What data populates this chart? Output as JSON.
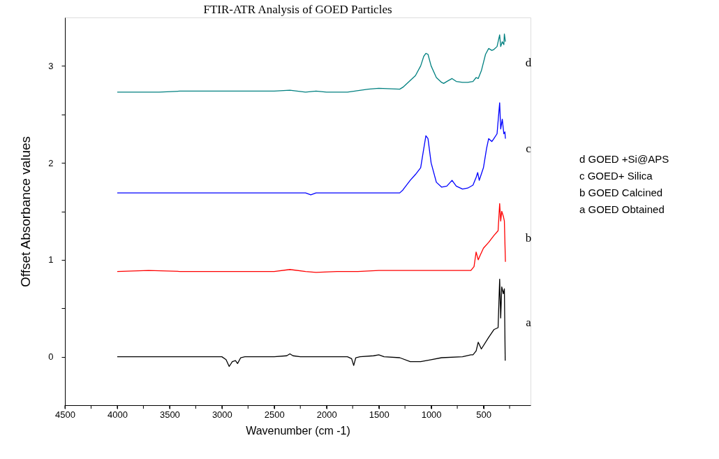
{
  "chart_data": {
    "type": "line",
    "title": "FTIR-ATR Analysis of GOED Particles",
    "xlabel": "Wavenumber (cm -1)",
    "ylabel": "Offset Absorbance values",
    "xlim": [
      4500,
      50
    ],
    "ylim": [
      -0.5,
      3.5
    ],
    "xticks": [
      4500,
      {
        "value": 4250,
        "label": null
      },
      4000,
      {
        "value": 3750,
        "label": null
      },
      3500,
      {
        "value": 3250,
        "label": null
      },
      3000,
      {
        "value": 2750,
        "label": null
      },
      2500,
      {
        "value": 2250,
        "label": null
      },
      2000,
      {
        "value": 1750,
        "label": null
      },
      1500,
      {
        "value": 1250,
        "label": null
      },
      1000,
      {
        "value": 750,
        "label": null
      },
      500,
      {
        "value": 250,
        "label": null
      }
    ],
    "yticks": [
      0,
      {
        "value": 0.5,
        "label": null
      },
      1,
      {
        "value": 1.5,
        "label": null
      },
      2,
      {
        "value": 2.5,
        "label": null
      },
      3
    ],
    "grid": false,
    "series": [
      {
        "name": "a",
        "color": "#000000",
        "x": [
          4000,
          3500,
          3000,
          2960,
          2930,
          2900,
          2870,
          2850,
          2820,
          2780,
          2500,
          2380,
          2350,
          2320,
          2250,
          2000,
          1800,
          1760,
          1740,
          1720,
          1680,
          1550,
          1500,
          1450,
          1300,
          1200,
          1100,
          1000,
          900,
          700,
          620,
          600,
          570,
          550,
          520,
          450,
          400,
          360,
          345,
          335,
          325,
          310,
          300,
          292
        ],
        "values": [
          0,
          0,
          0,
          -0.03,
          -0.1,
          -0.05,
          -0.04,
          -0.07,
          -0.01,
          0,
          0,
          0.01,
          0.03,
          0.01,
          0,
          0,
          0,
          -0.02,
          -0.09,
          -0.01,
          0,
          0.01,
          0.02,
          0,
          -0.01,
          -0.05,
          -0.05,
          -0.03,
          -0.01,
          0,
          0.02,
          0.02,
          0.06,
          0.15,
          0.08,
          0.2,
          0.28,
          0.3,
          0.8,
          0.4,
          0.72,
          0.65,
          0.7,
          -0.04
        ]
      },
      {
        "name": "b",
        "color": "#ff0000",
        "x": [
          4000,
          3700,
          3400,
          3100,
          2800,
          2500,
          2350,
          2200,
          2100,
          1900,
          1700,
          1500,
          1200,
          900,
          700,
          620,
          590,
          570,
          550,
          530,
          500,
          450,
          400,
          360,
          345,
          335,
          325,
          310,
          300,
          290
        ],
        "values": [
          0.88,
          0.89,
          0.88,
          0.88,
          0.88,
          0.88,
          0.9,
          0.88,
          0.87,
          0.88,
          0.88,
          0.89,
          0.89,
          0.89,
          0.89,
          0.89,
          0.93,
          1.08,
          1.0,
          1.05,
          1.12,
          1.18,
          1.25,
          1.3,
          1.58,
          1.4,
          1.5,
          1.45,
          1.4,
          0.98
        ]
      },
      {
        "name": "c",
        "color": "#0000ff",
        "x": [
          4000,
          3600,
          3200,
          2800,
          2400,
          2200,
          2150,
          2100,
          2000,
          1700,
          1400,
          1300,
          1270,
          1200,
          1150,
          1100,
          1070,
          1050,
          1030,
          1000,
          950,
          900,
          850,
          800,
          760,
          700,
          650,
          600,
          570,
          555,
          540,
          500,
          470,
          450,
          420,
          400,
          370,
          345,
          335,
          320,
          305,
          295,
          290
        ],
        "values": [
          1.69,
          1.69,
          1.69,
          1.69,
          1.69,
          1.69,
          1.67,
          1.69,
          1.69,
          1.69,
          1.69,
          1.69,
          1.72,
          1.82,
          1.88,
          1.95,
          2.15,
          2.28,
          2.25,
          2.0,
          1.8,
          1.75,
          1.76,
          1.82,
          1.76,
          1.73,
          1.74,
          1.77,
          1.85,
          1.9,
          1.82,
          1.95,
          2.15,
          2.25,
          2.22,
          2.25,
          2.3,
          2.62,
          2.35,
          2.45,
          2.3,
          2.32,
          2.25
        ]
      },
      {
        "name": "d",
        "color": "#008080",
        "x": [
          4000,
          3600,
          3400,
          3000,
          2500,
          2350,
          2200,
          2100,
          2000,
          1800,
          1600,
          1500,
          1300,
          1270,
          1200,
          1150,
          1100,
          1070,
          1050,
          1030,
          1000,
          950,
          900,
          880,
          850,
          800,
          760,
          700,
          650,
          600,
          570,
          550,
          520,
          480,
          450,
          420,
          400,
          370,
          345,
          335,
          320,
          305,
          300,
          290
        ],
        "values": [
          2.73,
          2.73,
          2.74,
          2.74,
          2.74,
          2.75,
          2.73,
          2.74,
          2.73,
          2.73,
          2.76,
          2.77,
          2.76,
          2.78,
          2.85,
          2.9,
          3.0,
          3.1,
          3.13,
          3.12,
          3.0,
          2.88,
          2.83,
          2.82,
          2.84,
          2.87,
          2.84,
          2.83,
          2.83,
          2.84,
          2.88,
          2.87,
          2.95,
          3.12,
          3.18,
          3.16,
          3.17,
          3.2,
          3.32,
          3.2,
          3.25,
          3.22,
          3.33,
          3.25
        ]
      }
    ],
    "annotations": [
      "d  GOED +Si@APS",
      "c  GOED+ Silica",
      "b  GOED Calcined",
      "a  GOED Obtained"
    ]
  }
}
